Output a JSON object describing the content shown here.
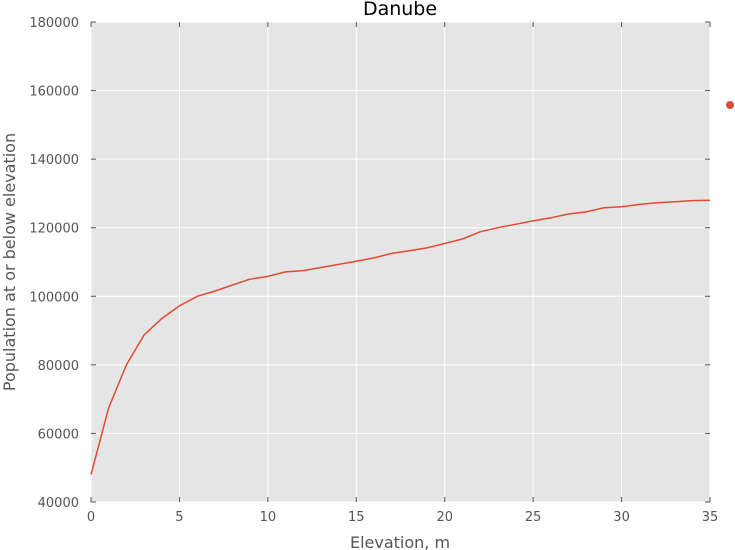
{
  "chart_data": {
    "type": "line",
    "title": "Danube",
    "xlabel": "Elevation, m",
    "ylabel": "Population at or below elevation",
    "xlim": [
      0,
      35
    ],
    "ylim": [
      40000,
      180000
    ],
    "x_ticks": [
      0,
      5,
      10,
      15,
      20,
      25,
      30,
      35
    ],
    "y_ticks": [
      40000,
      60000,
      80000,
      100000,
      120000,
      140000,
      160000,
      180000
    ],
    "grid": true,
    "legend": "right, marker only",
    "colors": {
      "series": "#e24a33",
      "plot_bg": "#e5e5e5",
      "grid": "#ffffff"
    },
    "series": [
      {
        "x": [
          0,
          1,
          2,
          3,
          4,
          5,
          6,
          7,
          8,
          9,
          10,
          11,
          12,
          13,
          14,
          15,
          16,
          17,
          18,
          19,
          20,
          21,
          22,
          23,
          24,
          25,
          26,
          27,
          28,
          29,
          30,
          31,
          32,
          33,
          34,
          35
        ],
        "y": [
          48000,
          67500,
          80000,
          88700,
          93500,
          97200,
          100000,
          101500,
          103300,
          105000,
          105800,
          107100,
          107500,
          108400,
          109300,
          110200,
          111200,
          112500,
          113300,
          114100,
          115400,
          116700,
          118800,
          120000,
          121000,
          122000,
          122900,
          124000,
          124600,
          125800,
          126100,
          126800,
          127300,
          127600,
          127900,
          128000
        ]
      }
    ]
  }
}
